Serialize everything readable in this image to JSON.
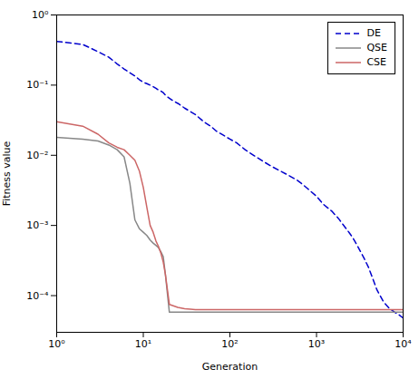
{
  "chart_data": {
    "type": "line",
    "xlabel": "Generation",
    "ylabel": "Fitness value",
    "log": true,
    "grid": false,
    "legend": "upper right",
    "xlim": [
      1,
      10000
    ],
    "ylim": [
      3e-05,
      1.0
    ],
    "xticks": [
      {
        "value": 1,
        "label": "10⁰"
      },
      {
        "value": 10,
        "label": "10¹"
      },
      {
        "value": 100,
        "label": "10²"
      },
      {
        "value": 1000,
        "label": "10³"
      },
      {
        "value": 10000,
        "label": "10⁴"
      }
    ],
    "yticks": [
      {
        "value": 0.0001,
        "label": "10⁻⁴"
      },
      {
        "value": 0.001,
        "label": "10⁻³"
      },
      {
        "value": 0.01,
        "label": "10⁻²"
      },
      {
        "value": 0.1,
        "label": "10⁻¹"
      },
      {
        "value": 1,
        "label": "10⁰"
      }
    ],
    "series": [
      {
        "name": "DE",
        "color": "#0000cc",
        "line_style": "dashed",
        "x": [
          1,
          2,
          3,
          4,
          5,
          6,
          7,
          8,
          9,
          10,
          11,
          12,
          13,
          14,
          15,
          16,
          17,
          18,
          19,
          20,
          22,
          25,
          28,
          30,
          35,
          40,
          50,
          60,
          70,
          80,
          100,
          120,
          150,
          200,
          250,
          300,
          400,
          500,
          600,
          700,
          800,
          1000,
          1200,
          1500,
          1800,
          2000,
          2200,
          2400,
          2600,
          2800,
          3000,
          3500,
          4000,
          5000,
          6000,
          7000,
          8000,
          9000,
          10000
        ],
        "values": [
          0.42,
          0.38,
          0.3,
          0.25,
          0.2,
          0.17,
          0.15,
          0.135,
          0.12,
          0.11,
          0.105,
          0.1,
          0.095,
          0.09,
          0.085,
          0.082,
          0.078,
          0.072,
          0.068,
          0.065,
          0.06,
          0.055,
          0.05,
          0.047,
          0.042,
          0.038,
          0.03,
          0.026,
          0.022,
          0.02,
          0.017,
          0.015,
          0.012,
          0.0095,
          0.008,
          0.007,
          0.0058,
          0.005,
          0.0044,
          0.0038,
          0.0033,
          0.0026,
          0.002,
          0.0016,
          0.00125,
          0.00105,
          0.0009,
          0.00078,
          0.00068,
          0.00058,
          0.0005,
          0.00035,
          0.00025,
          0.00012,
          8e-05,
          6.5e-05,
          5.8e-05,
          5.3e-05,
          4.8e-05
        ]
      },
      {
        "name": "QSE",
        "color": "#888888",
        "line_style": "solid",
        "x": [
          1,
          2,
          3,
          4,
          5,
          6,
          7,
          8,
          9,
          10,
          11,
          12,
          13,
          14,
          15,
          16,
          17,
          18,
          20,
          25,
          30,
          40,
          50,
          70,
          100,
          200,
          300,
          500,
          1000,
          2000,
          5000,
          10000
        ],
        "values": [
          0.018,
          0.017,
          0.016,
          0.014,
          0.012,
          0.0095,
          0.004,
          0.0012,
          0.0009,
          0.0008,
          0.00072,
          0.00062,
          0.00056,
          0.00052,
          0.00048,
          0.00042,
          0.00036,
          0.0002,
          5.8e-05,
          5.8e-05,
          5.8e-05,
          5.8e-05,
          5.8e-05,
          5.8e-05,
          5.8e-05,
          5.8e-05,
          5.8e-05,
          5.8e-05,
          5.8e-05,
          5.8e-05,
          5.8e-05,
          5.8e-05
        ]
      },
      {
        "name": "CSE",
        "color": "#cc6666",
        "line_style": "solid",
        "x": [
          1,
          2,
          3,
          4,
          5,
          6,
          7,
          8,
          9,
          10,
          11,
          12,
          13,
          14,
          15,
          16,
          17,
          18,
          20,
          25,
          30,
          35,
          40,
          50,
          70,
          100,
          200,
          300,
          500,
          1000,
          2000,
          5000,
          10000
        ],
        "values": [
          0.03,
          0.026,
          0.02,
          0.015,
          0.013,
          0.012,
          0.01,
          0.0085,
          0.006,
          0.0035,
          0.0018,
          0.001,
          0.0008,
          0.0006,
          0.0005,
          0.0004,
          0.0003,
          0.0002,
          7.5e-05,
          6.8e-05,
          6.5e-05,
          6.4e-05,
          6.3e-05,
          6.3e-05,
          6.3e-05,
          6.3e-05,
          6.3e-05,
          6.3e-05,
          6.3e-05,
          6.3e-05,
          6.3e-05,
          6.3e-05,
          6.3e-05
        ]
      }
    ]
  }
}
